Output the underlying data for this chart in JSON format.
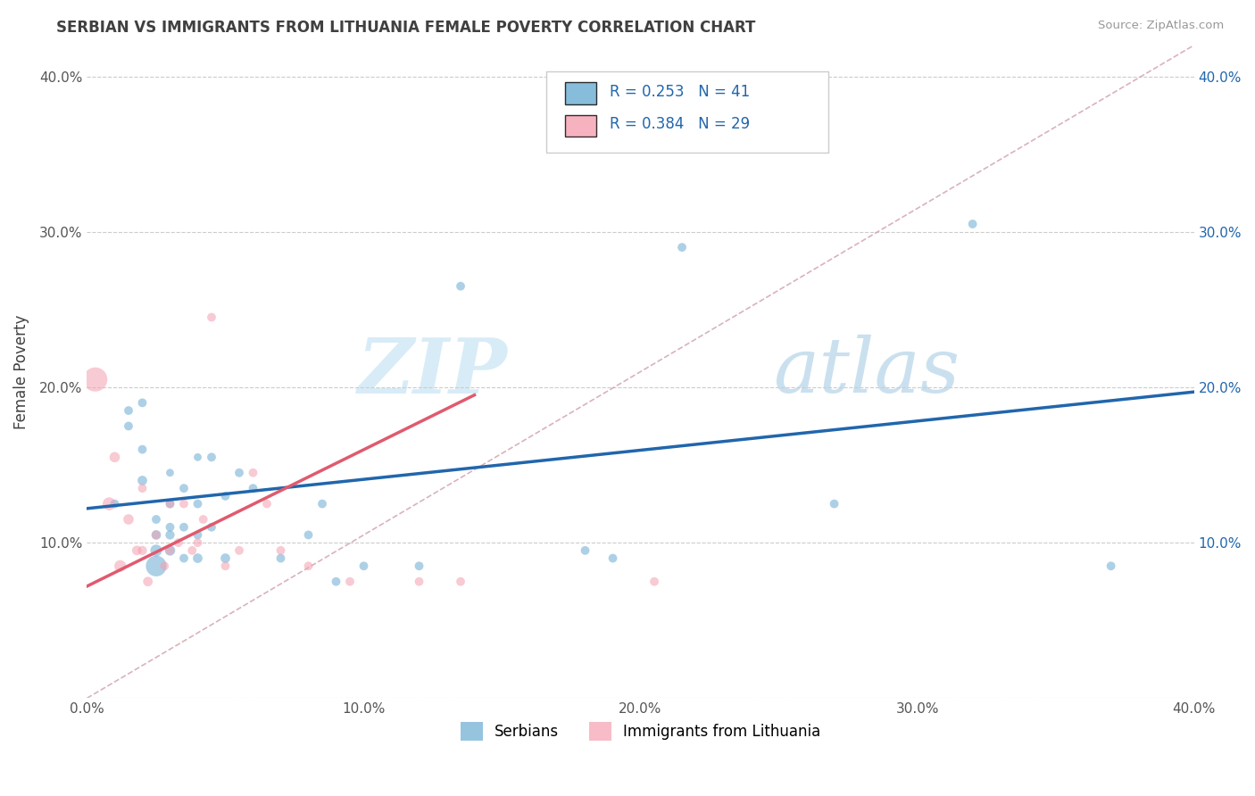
{
  "title": "SERBIAN VS IMMIGRANTS FROM LITHUANIA FEMALE POVERTY CORRELATION CHART",
  "source": "Source: ZipAtlas.com",
  "ylabel": "Female Poverty",
  "xlim": [
    0.0,
    0.4
  ],
  "ylim": [
    0.0,
    0.42
  ],
  "x_ticks": [
    0.0,
    0.1,
    0.2,
    0.3,
    0.4
  ],
  "x_tick_labels": [
    "0.0%",
    "10.0%",
    "20.0%",
    "30.0%",
    "40.0%"
  ],
  "y_ticks": [
    0.0,
    0.1,
    0.2,
    0.3,
    0.4
  ],
  "y_tick_labels": [
    "",
    "10.0%",
    "20.0%",
    "30.0%",
    "40.0%"
  ],
  "serbians_R": 0.253,
  "serbians_N": 41,
  "lithuania_R": 0.384,
  "lithuania_N": 29,
  "blue_color": "#6aabd2",
  "pink_color": "#f4a0b0",
  "blue_line_color": "#2166ac",
  "pink_line_color": "#e05a6e",
  "diag_line_color": "#d0a0a8",
  "grid_color": "#cccccc",
  "title_color": "#404040",
  "legend_text_color": "#2166ac",
  "blue_line_x0": 0.0,
  "blue_line_y0": 0.122,
  "blue_line_x1": 0.4,
  "blue_line_y1": 0.197,
  "pink_line_x0": 0.0,
  "pink_line_y0": 0.072,
  "pink_line_x1": 0.14,
  "pink_line_y1": 0.195,
  "serbians_x": [
    0.01,
    0.015,
    0.015,
    0.02,
    0.02,
    0.02,
    0.025,
    0.025,
    0.025,
    0.025,
    0.03,
    0.03,
    0.03,
    0.03,
    0.03,
    0.035,
    0.035,
    0.035,
    0.04,
    0.04,
    0.04,
    0.04,
    0.045,
    0.045,
    0.05,
    0.05,
    0.055,
    0.06,
    0.07,
    0.08,
    0.085,
    0.09,
    0.1,
    0.12,
    0.135,
    0.18,
    0.19,
    0.215,
    0.27,
    0.32,
    0.37
  ],
  "serbians_y": [
    0.125,
    0.175,
    0.185,
    0.14,
    0.16,
    0.19,
    0.085,
    0.095,
    0.105,
    0.115,
    0.095,
    0.105,
    0.11,
    0.125,
    0.145,
    0.09,
    0.11,
    0.135,
    0.09,
    0.105,
    0.125,
    0.155,
    0.11,
    0.155,
    0.09,
    0.13,
    0.145,
    0.135,
    0.09,
    0.105,
    0.125,
    0.075,
    0.085,
    0.085,
    0.265,
    0.095,
    0.09,
    0.29,
    0.125,
    0.305,
    0.085
  ],
  "serbians_sizes": [
    50,
    50,
    50,
    60,
    50,
    50,
    280,
    90,
    60,
    50,
    70,
    55,
    50,
    50,
    40,
    50,
    50,
    50,
    60,
    50,
    50,
    40,
    50,
    50,
    60,
    50,
    50,
    50,
    50,
    50,
    50,
    50,
    50,
    50,
    50,
    50,
    50,
    50,
    50,
    50,
    50
  ],
  "lithuania_x": [
    0.003,
    0.008,
    0.01,
    0.012,
    0.015,
    0.018,
    0.02,
    0.02,
    0.022,
    0.025,
    0.028,
    0.03,
    0.03,
    0.033,
    0.035,
    0.038,
    0.04,
    0.042,
    0.045,
    0.05,
    0.055,
    0.06,
    0.065,
    0.07,
    0.08,
    0.095,
    0.12,
    0.135,
    0.205
  ],
  "lithuania_y": [
    0.205,
    0.125,
    0.155,
    0.085,
    0.115,
    0.095,
    0.095,
    0.135,
    0.075,
    0.105,
    0.085,
    0.095,
    0.125,
    0.1,
    0.125,
    0.095,
    0.1,
    0.115,
    0.245,
    0.085,
    0.095,
    0.145,
    0.125,
    0.095,
    0.085,
    0.075,
    0.075,
    0.075,
    0.075
  ],
  "lithuania_sizes": [
    380,
    110,
    70,
    90,
    70,
    60,
    55,
    50,
    60,
    50,
    50,
    50,
    50,
    50,
    50,
    50,
    50,
    50,
    50,
    50,
    50,
    50,
    50,
    50,
    50,
    50,
    50,
    50,
    50
  ]
}
